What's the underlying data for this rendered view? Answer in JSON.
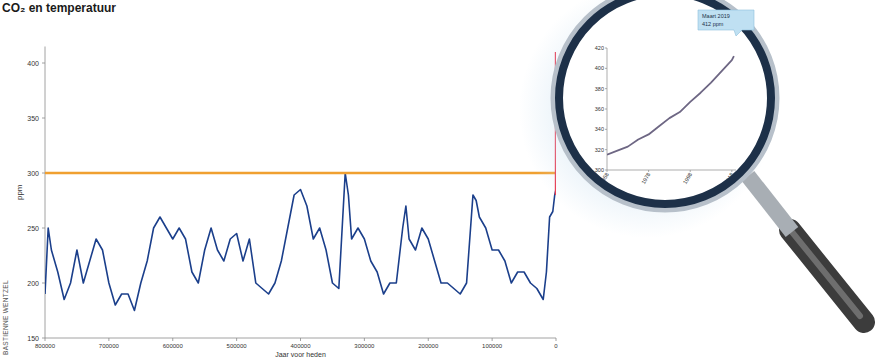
{
  "credit": "BASTIENNE WENTZEL",
  "chart_data": [
    {
      "type": "line",
      "title": "CO₂ en temperatuur",
      "y_label": "ppm",
      "x_label": "Jaar voor heden",
      "xlim": [
        800000,
        0
      ],
      "ylim": [
        150,
        415
      ],
      "xticks": [
        800000,
        700000,
        600000,
        500000,
        400000,
        300000,
        200000,
        100000,
        0
      ],
      "yticks": [
        150,
        200,
        250,
        300,
        350,
        400
      ],
      "grid": false,
      "series": [
        {
          "color": "#1b3f8b",
          "x": [
            800000,
            795000,
            790000,
            780000,
            770000,
            760000,
            750000,
            740000,
            730000,
            720000,
            710000,
            700000,
            690000,
            680000,
            670000,
            660000,
            650000,
            640000,
            630000,
            620000,
            610000,
            600000,
            590000,
            580000,
            570000,
            560000,
            550000,
            540000,
            530000,
            520000,
            510000,
            500000,
            490000,
            480000,
            470000,
            460000,
            450000,
            440000,
            430000,
            420000,
            410000,
            400000,
            390000,
            380000,
            370000,
            360000,
            350000,
            340000,
            330000,
            325000,
            320000,
            310000,
            300000,
            290000,
            280000,
            270000,
            260000,
            250000,
            240000,
            235000,
            230000,
            220000,
            210000,
            200000,
            190000,
            180000,
            170000,
            160000,
            150000,
            140000,
            130000,
            125000,
            120000,
            110000,
            100000,
            90000,
            80000,
            70000,
            60000,
            50000,
            40000,
            30000,
            20000,
            15000,
            10000,
            5000,
            2000,
            0
          ],
          "values": [
            190,
            250,
            230,
            210,
            185,
            200,
            230,
            200,
            220,
            240,
            230,
            200,
            180,
            190,
            190,
            175,
            200,
            220,
            250,
            260,
            250,
            240,
            250,
            240,
            210,
            200,
            230,
            250,
            230,
            220,
            240,
            245,
            220,
            240,
            200,
            195,
            190,
            200,
            220,
            250,
            280,
            285,
            270,
            240,
            250,
            230,
            200,
            195,
            300,
            280,
            240,
            250,
            240,
            220,
            210,
            190,
            200,
            200,
            250,
            270,
            240,
            230,
            250,
            240,
            220,
            200,
            200,
            195,
            190,
            200,
            280,
            275,
            260,
            250,
            230,
            230,
            220,
            200,
            210,
            210,
            200,
            195,
            185,
            210,
            260,
            265,
            280,
            285
          ]
        },
        {
          "color": "#f0a030",
          "x": [
            800000,
            0
          ],
          "values": [
            300,
            300
          ]
        },
        {
          "color": "#e8334a",
          "x": [
            0,
            0
          ],
          "values": [
            280,
            410
          ]
        }
      ]
    },
    {
      "type": "line",
      "xlim": [
        1958,
        2020
      ],
      "ylim": [
        300,
        420
      ],
      "xticks": [
        1958,
        1978,
        1998,
        2018
      ],
      "yticks": [
        300,
        320,
        340,
        360,
        380,
        400,
        420
      ],
      "annotations": [
        "Maart 2019",
        "412 ppm"
      ],
      "series": [
        {
          "color": "#6e6784",
          "x": [
            1958,
            1963,
            1968,
            1973,
            1978,
            1983,
            1988,
            1993,
            1998,
            2003,
            2008,
            2013,
            2018,
            2019
          ],
          "values": [
            315,
            319,
            323,
            330,
            335,
            343,
            351,
            357,
            367,
            376,
            386,
            397,
            408,
            412
          ]
        }
      ]
    }
  ]
}
